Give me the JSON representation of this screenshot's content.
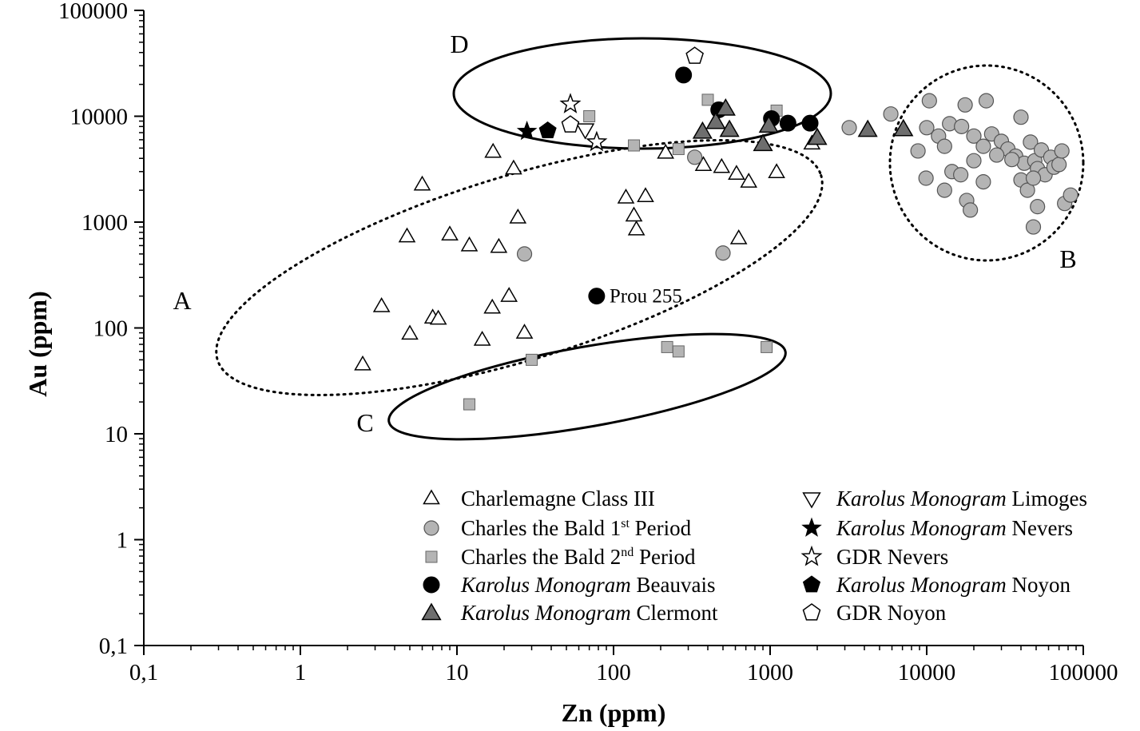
{
  "chart_data": {
    "type": "scatter",
    "xlabel": "Zn (ppm)",
    "ylabel": "Au (ppm)",
    "x_scale": "log",
    "y_scale": "log",
    "xlim": [
      0.1,
      100000
    ],
    "ylim": [
      0.1,
      100000
    ],
    "x_ticks": [
      "0,1",
      "1",
      "10",
      "100",
      "1000",
      "10000",
      "100000"
    ],
    "y_ticks": [
      "0,1",
      "1",
      "10",
      "100",
      "1000",
      "10000",
      "100000"
    ],
    "grid": false,
    "legend_position": "bottom-right",
    "series": [
      {
        "name": "Charlemagne Class III",
        "marker": "triangle-up-open",
        "points": [
          [
            2.5,
            45
          ],
          [
            3.3,
            160
          ],
          [
            5,
            88
          ],
          [
            7,
            125
          ],
          [
            7.6,
            122
          ],
          [
            14.5,
            77
          ],
          [
            16.8,
            155
          ],
          [
            21.5,
            200
          ],
          [
            27,
            90
          ],
          [
            4.8,
            730
          ],
          [
            6,
            2250
          ],
          [
            9,
            760
          ],
          [
            12,
            600
          ],
          [
            18.5,
            580
          ],
          [
            24.5,
            1100
          ],
          [
            17,
            4600
          ],
          [
            23,
            3200
          ],
          [
            120,
            1700
          ],
          [
            135,
            1150
          ],
          [
            140,
            850
          ],
          [
            160,
            1750
          ],
          [
            215,
            4500
          ],
          [
            375,
            3450
          ],
          [
            490,
            3300
          ],
          [
            610,
            2850
          ],
          [
            730,
            2400
          ],
          [
            1100,
            2950
          ],
          [
            630,
            700
          ],
          [
            1850,
            5500
          ]
        ]
      },
      {
        "name": "Charles the Bald 1st Period",
        "marker": "circle-gray",
        "points": [
          [
            27,
            500
          ],
          [
            500,
            510
          ],
          [
            330,
            4100
          ],
          [
            3200,
            7800
          ],
          [
            5900,
            10500
          ],
          [
            10400,
            14000
          ],
          [
            10000,
            7800
          ],
          [
            11900,
            6500
          ],
          [
            8800,
            4700
          ],
          [
            9900,
            2600
          ],
          [
            14000,
            8500
          ],
          [
            16700,
            8000
          ],
          [
            13000,
            5200
          ],
          [
            14500,
            3000
          ],
          [
            16500,
            2800
          ],
          [
            18000,
            1600
          ],
          [
            19000,
            1300
          ],
          [
            13000,
            2000
          ],
          [
            17600,
            12800
          ],
          [
            24000,
            14000
          ],
          [
            40000,
            9800
          ],
          [
            20000,
            6500
          ],
          [
            23000,
            5200
          ],
          [
            26000,
            6800
          ],
          [
            30000,
            5800
          ],
          [
            33000,
            4900
          ],
          [
            37000,
            4200
          ],
          [
            42000,
            3600
          ],
          [
            46000,
            5700
          ],
          [
            49000,
            3800
          ],
          [
            51000,
            3200
          ],
          [
            54000,
            4800
          ],
          [
            57000,
            2800
          ],
          [
            62000,
            4100
          ],
          [
            65000,
            3300
          ],
          [
            70000,
            3500
          ],
          [
            73000,
            4700
          ],
          [
            76000,
            1500
          ],
          [
            83000,
            1800
          ],
          [
            40000,
            2500
          ],
          [
            44000,
            2000
          ],
          [
            48000,
            2600
          ],
          [
            51000,
            1400
          ],
          [
            48000,
            900
          ],
          [
            23000,
            2400
          ],
          [
            20000,
            3800
          ],
          [
            28000,
            4300
          ],
          [
            35000,
            3900
          ]
        ]
      },
      {
        "name": "Charles the Bald 2nd Period",
        "marker": "square-gray",
        "points": [
          [
            12,
            19
          ],
          [
            30,
            50
          ],
          [
            220,
            66
          ],
          [
            260,
            60
          ],
          [
            950,
            66
          ],
          [
            70,
            10000
          ],
          [
            135,
            5300
          ],
          [
            260,
            4900
          ],
          [
            400,
            14300
          ],
          [
            1100,
            11300
          ]
        ]
      },
      {
        "name": "Karolus Monogram Beauvais",
        "marker": "circle-black",
        "points": [
          [
            78,
            200
          ],
          [
            280,
            24500
          ],
          [
            470,
            11500
          ],
          [
            1020,
            9500
          ],
          [
            1300,
            8600
          ],
          [
            1800,
            8600
          ]
        ]
      },
      {
        "name": "Karolus Monogram Clermont",
        "marker": "triangle-up-dark",
        "points": [
          [
            370,
            7200
          ],
          [
            450,
            8900
          ],
          [
            520,
            11900
          ],
          [
            550,
            7500
          ],
          [
            900,
            5500
          ],
          [
            980,
            8200
          ],
          [
            2000,
            6300
          ],
          [
            4200,
            7500
          ],
          [
            7100,
            7600
          ]
        ]
      },
      {
        "name": "Karolus Monogram Limoges",
        "marker": "triangle-down-open",
        "points": [
          [
            66,
            7500
          ]
        ]
      },
      {
        "name": "Karolus Monogram Nevers",
        "marker": "star-black",
        "points": [
          [
            28,
            7200
          ]
        ]
      },
      {
        "name": "GDR Nevers",
        "marker": "star-open",
        "points": [
          [
            53,
            13000
          ],
          [
            78,
            5700
          ]
        ]
      },
      {
        "name": "Karolus Monogram Noyon",
        "marker": "pentagon-black",
        "points": [
          [
            38,
            7300
          ]
        ]
      },
      {
        "name": "GDR Noyon",
        "marker": "pentagon-open",
        "points": [
          [
            53,
            8300
          ],
          [
            330,
            37000
          ]
        ]
      }
    ],
    "regions": [
      {
        "label": "A",
        "style": "dotted"
      },
      {
        "label": "B",
        "style": "dotted"
      },
      {
        "label": "C",
        "style": "solid"
      },
      {
        "label": "D",
        "style": "solid"
      }
    ],
    "annotations": [
      {
        "text": "Prou 255",
        "x": 78,
        "y": 200
      }
    ],
    "legend": [
      {
        "prefix_italic": "",
        "text": "Charlemagne Class III",
        "sup": "",
        "suffix": "",
        "marker": "triangle-up-open"
      },
      {
        "prefix_italic": "",
        "text": "Charles the Bald 1",
        "sup": "st",
        "suffix": " Period",
        "marker": "circle-gray"
      },
      {
        "prefix_italic": "",
        "text": "Charles the Bald 2",
        "sup": "nd",
        "suffix": " Period",
        "marker": "square-gray"
      },
      {
        "prefix_italic": "Karolus Monogram",
        "text": " Beauvais",
        "sup": "",
        "suffix": "",
        "marker": "circle-black"
      },
      {
        "prefix_italic": "Karolus Monogram",
        "text": " Clermont",
        "sup": "",
        "suffix": "",
        "marker": "triangle-up-dark"
      },
      {
        "prefix_italic": "Karolus Monogram",
        "text": " Limoges",
        "sup": "",
        "suffix": "",
        "marker": "triangle-down-open"
      },
      {
        "prefix_italic": "Karolus Monogram",
        "text": " Nevers",
        "sup": "",
        "suffix": "",
        "marker": "star-black"
      },
      {
        "prefix_italic": "",
        "text": "GDR Nevers",
        "sup": "",
        "suffix": "",
        "marker": "star-open"
      },
      {
        "prefix_italic": "Karolus Monogram",
        "text": " Noyon",
        "sup": "",
        "suffix": "",
        "marker": "pentagon-black"
      },
      {
        "prefix_italic": "",
        "text": "GDR Noyon",
        "sup": "",
        "suffix": "",
        "marker": "pentagon-open"
      }
    ],
    "colors": {
      "open_fill": "#ffffff",
      "gray_fill": "#b4b4b4",
      "dark_fill": "#6e6e6e",
      "black_fill": "#000000",
      "stroke": "#000000"
    }
  }
}
